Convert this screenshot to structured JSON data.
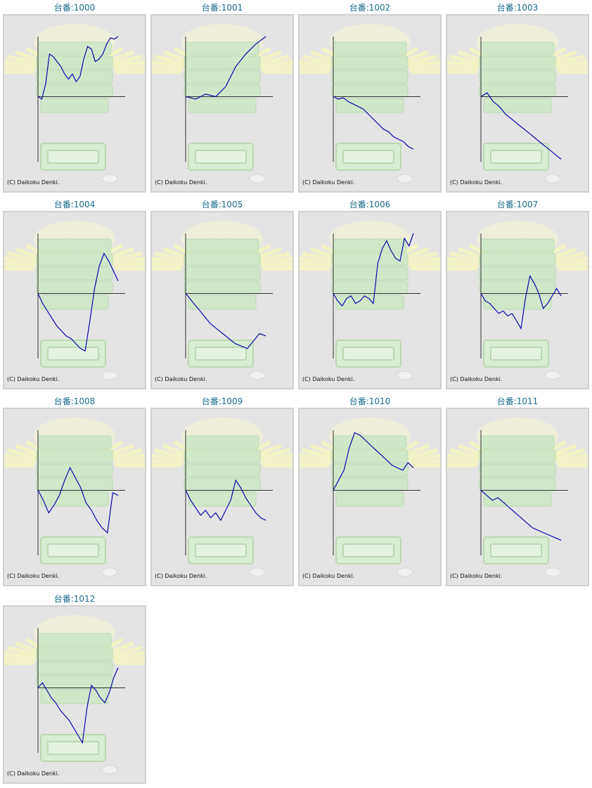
{
  "colors": {
    "line": "#0a0aa8",
    "axis": "#333333",
    "title": "#1a6a8a",
    "panel_bg": "#e4e4e4",
    "panel_border": "#d0d0d0"
  },
  "copyright": "(C) Daikoku Denki.",
  "machines": [
    {
      "label": "台番:1000",
      "chart_data": {
        "type": "line",
        "x_axis_frac": 0.52,
        "values": [
          0.52,
          0.5,
          0.62,
          0.86,
          0.84,
          0.8,
          0.76,
          0.7,
          0.66,
          0.7,
          0.64,
          0.68,
          0.82,
          0.92,
          0.9,
          0.8,
          0.82,
          0.86,
          0.94,
          0.99,
          0.98,
          1.0
        ]
      }
    },
    {
      "label": "台番:1001",
      "chart_data": {
        "type": "line",
        "x_axis_frac": 0.52,
        "values": [
          0.52,
          0.5,
          0.54,
          0.52,
          0.6,
          0.76,
          0.86,
          0.94,
          1.0
        ]
      }
    },
    {
      "label": "台番:1002",
      "chart_data": {
        "type": "line",
        "x_axis_frac": 0.52,
        "values": [
          0.52,
          0.5,
          0.51,
          0.48,
          0.46,
          0.44,
          0.42,
          0.38,
          0.34,
          0.3,
          0.26,
          0.24,
          0.2,
          0.18,
          0.16,
          0.12,
          0.1
        ]
      }
    },
    {
      "label": "台番:1003",
      "chart_data": {
        "type": "line",
        "x_axis_frac": 0.52,
        "values": [
          0.52,
          0.55,
          0.48,
          0.44,
          0.38,
          0.34,
          0.3,
          0.26,
          0.22,
          0.18,
          0.14,
          0.1,
          0.06,
          0.02
        ]
      }
    },
    {
      "label": "台番:1004",
      "chart_data": {
        "type": "line",
        "x_axis_frac": 0.52,
        "values": [
          0.52,
          0.44,
          0.38,
          0.32,
          0.26,
          0.22,
          0.18,
          0.16,
          0.12,
          0.08,
          0.06,
          0.3,
          0.56,
          0.74,
          0.84,
          0.78,
          0.7,
          0.62
        ]
      }
    },
    {
      "label": "台番:1005",
      "chart_data": {
        "type": "line",
        "x_axis_frac": 0.52,
        "values": [
          0.52,
          0.46,
          0.4,
          0.34,
          0.28,
          0.24,
          0.2,
          0.16,
          0.12,
          0.1,
          0.08,
          0.14,
          0.2,
          0.18
        ]
      }
    },
    {
      "label": "台番:1006",
      "chart_data": {
        "type": "line",
        "x_axis_frac": 0.52,
        "values": [
          0.52,
          0.46,
          0.42,
          0.48,
          0.5,
          0.44,
          0.46,
          0.5,
          0.48,
          0.44,
          0.76,
          0.88,
          0.94,
          0.86,
          0.8,
          0.78,
          0.96,
          0.9,
          1.0
        ]
      }
    },
    {
      "label": "台番:1007",
      "chart_data": {
        "type": "line",
        "x_axis_frac": 0.52,
        "values": [
          0.52,
          0.46,
          0.44,
          0.4,
          0.36,
          0.38,
          0.34,
          0.36,
          0.3,
          0.24,
          0.48,
          0.66,
          0.6,
          0.52,
          0.4,
          0.44,
          0.5,
          0.56,
          0.5
        ]
      }
    },
    {
      "label": "台番:1008",
      "chart_data": {
        "type": "line",
        "x_axis_frac": 0.52,
        "values": [
          0.52,
          0.44,
          0.34,
          0.4,
          0.48,
          0.6,
          0.7,
          0.62,
          0.54,
          0.42,
          0.36,
          0.28,
          0.22,
          0.18,
          0.5,
          0.48
        ]
      }
    },
    {
      "label": "台番:1009",
      "chart_data": {
        "type": "line",
        "x_axis_frac": 0.52,
        "values": [
          0.52,
          0.44,
          0.38,
          0.32,
          0.36,
          0.3,
          0.34,
          0.28,
          0.36,
          0.44,
          0.6,
          0.54,
          0.46,
          0.4,
          0.34,
          0.3,
          0.28
        ]
      }
    },
    {
      "label": "台番:1010",
      "chart_data": {
        "type": "line",
        "x_axis_frac": 0.52,
        "values": [
          0.52,
          0.6,
          0.68,
          0.86,
          0.98,
          0.96,
          0.92,
          0.88,
          0.84,
          0.8,
          0.76,
          0.72,
          0.7,
          0.68,
          0.74,
          0.7
        ]
      }
    },
    {
      "label": "台番:1011",
      "chart_data": {
        "type": "line",
        "x_axis_frac": 0.52,
        "values": [
          0.52,
          0.48,
          0.44,
          0.46,
          0.42,
          0.38,
          0.34,
          0.3,
          0.26,
          0.22,
          0.2,
          0.18,
          0.16,
          0.14,
          0.12
        ]
      }
    },
    {
      "label": "台番:1012",
      "chart_data": {
        "type": "line",
        "x_axis_frac": 0.52,
        "values": [
          0.52,
          0.56,
          0.5,
          0.44,
          0.4,
          0.34,
          0.3,
          0.26,
          0.2,
          0.14,
          0.08,
          0.36,
          0.54,
          0.5,
          0.44,
          0.4,
          0.48,
          0.6,
          0.68
        ]
      }
    }
  ]
}
